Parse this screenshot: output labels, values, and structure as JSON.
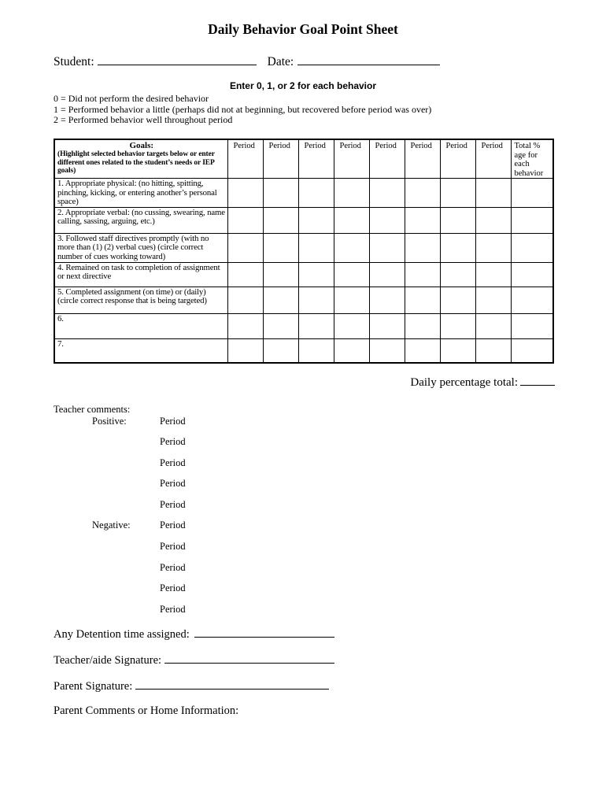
{
  "page_title": "Daily Behavior Goal Point Sheet",
  "student_section": {
    "student_label": "Student:",
    "date_label": "Date:"
  },
  "instructions": {
    "heading": "Enter 0, 1, or 2 for each behavior",
    "legend": [
      "0 = Did not perform the desired behavior",
      "1 = Performed behavior a little (perhaps did not at beginning, but recovered before period was over)",
      "2 = Performed behavior well throughout period"
    ]
  },
  "table": {
    "goals_header_title": "Goals:",
    "goals_header_note": "(Highlight selected behavior targets below or enter different ones related to the student’s needs or IEP goals)",
    "period_header": "Period",
    "period_column_count": 8,
    "total_header": "Total % age for each behavior",
    "rows": [
      {
        "label": "1. Appropriate physical: (no hitting, spitting, pinching, kicking, or entering another’s personal space)"
      },
      {
        "label": "2. Appropriate verbal: (no cussing, swearing, name calling, sassing, arguing, etc.)"
      },
      {
        "label": "3. Followed staff directives promptly (with no more than (1) (2) verbal cues) (circle correct number of cues working toward)"
      },
      {
        "label": "4. Remained on task to completion of assignment or next directive"
      },
      {
        "label": "5. Completed assignment (on time) or (daily) (circle correct response that is being targeted)"
      },
      {
        "label": "6."
      },
      {
        "label": "7."
      }
    ]
  },
  "daily_total": {
    "label": "Daily percentage total:"
  },
  "teacher_comments": {
    "heading": "Teacher comments:",
    "positive_label": "Positive:",
    "negative_label": "Negative:",
    "period_label": "Period",
    "positive_period_count": 5,
    "negative_period_count": 5
  },
  "footer": {
    "detention_label": "Any Detention time assigned:",
    "teacher_signature_label": "Teacher/aide Signature:",
    "parent_signature_label": "Parent Signature:",
    "parent_comments_label": "Parent Comments or Home Information:"
  }
}
